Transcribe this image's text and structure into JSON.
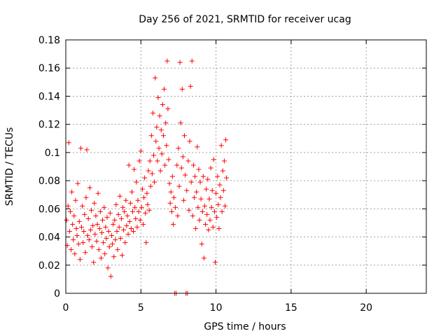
{
  "chart_data": {
    "type": "scatter",
    "title": "Day 256 of 2021, SRMTID for receiver ucag",
    "xlabel": "GPS time / hours",
    "ylabel": "SRMTID / TECUs",
    "xlim": [
      0,
      24
    ],
    "ylim": [
      0,
      0.18
    ],
    "xticks": [
      0,
      5,
      10,
      15,
      20
    ],
    "xtick_labels": [
      "0",
      "5",
      "10",
      "15",
      "20"
    ],
    "yticks": [
      0,
      0.02,
      0.04,
      0.06,
      0.08,
      0.1,
      0.12,
      0.14,
      0.16,
      0.18
    ],
    "ytick_labels": [
      "0",
      "0.02",
      "0.04",
      "0.06",
      "0.08",
      "0.1",
      "0.12",
      "0.14",
      "0.16",
      "0.18"
    ],
    "grid": true,
    "marker": "+",
    "series": [
      {
        "name": "SRMTID",
        "color": "#ff0000",
        "points": [
          [
            0.05,
            0.052
          ],
          [
            0.1,
            0.034
          ],
          [
            0.15,
            0.062
          ],
          [
            0.2,
            0.107
          ],
          [
            0.25,
            0.044
          ],
          [
            0.3,
            0.058
          ],
          [
            0.35,
            0.031
          ],
          [
            0.4,
            0.072
          ],
          [
            0.45,
            0.049
          ],
          [
            0.5,
            0.038
          ],
          [
            0.55,
            0.055
          ],
          [
            0.6,
            0.028
          ],
          [
            0.65,
            0.066
          ],
          [
            0.7,
            0.046
          ],
          [
            0.75,
            0.041
          ],
          [
            0.8,
            0.078
          ],
          [
            0.85,
            0.035
          ],
          [
            0.9,
            0.051
          ],
          [
            0.95,
            0.024
          ],
          [
            1.0,
            0.103
          ],
          [
            1.05,
            0.047
          ],
          [
            1.1,
            0.062
          ],
          [
            1.15,
            0.036
          ],
          [
            1.2,
            0.044
          ],
          [
            1.25,
            0.056
          ],
          [
            1.3,
            0.029
          ],
          [
            1.35,
            0.068
          ],
          [
            1.4,
            0.102
          ],
          [
            1.45,
            0.041
          ],
          [
            1.5,
            0.053
          ],
          [
            1.55,
            0.038
          ],
          [
            1.6,
            0.075
          ],
          [
            1.65,
            0.045
          ],
          [
            1.7,
            0.059
          ],
          [
            1.75,
            0.033
          ],
          [
            1.8,
            0.048
          ],
          [
            1.85,
            0.022
          ],
          [
            1.9,
            0.064
          ],
          [
            1.95,
            0.042
          ],
          [
            2.0,
            0.055
          ],
          [
            2.05,
            0.037
          ],
          [
            2.1,
            0.049
          ],
          [
            2.15,
            0.071
          ],
          [
            2.2,
            0.031
          ],
          [
            2.25,
            0.046
          ],
          [
            2.3,
            0.058
          ],
          [
            2.35,
            0.025
          ],
          [
            2.4,
            0.043
          ],
          [
            2.45,
            0.052
          ],
          [
            2.5,
            0.036
          ],
          [
            2.55,
            0.061
          ],
          [
            2.6,
            0.028
          ],
          [
            2.65,
            0.047
          ],
          [
            2.7,
            0.039
          ],
          [
            2.75,
            0.054
          ],
          [
            2.8,
            0.018
          ],
          [
            2.85,
            0.044
          ],
          [
            2.9,
            0.033
          ],
          [
            2.95,
            0.057
          ],
          [
            3.0,
            0.012
          ],
          [
            3.05,
            0.041
          ],
          [
            3.1,
            0.035
          ],
          [
            3.15,
            0.049
          ],
          [
            3.2,
            0.026
          ],
          [
            3.25,
            0.052
          ],
          [
            3.3,
            0.038
          ],
          [
            3.35,
            0.063
          ],
          [
            3.4,
            0.044
          ],
          [
            3.45,
            0.031
          ],
          [
            3.5,
            0.056
          ],
          [
            3.55,
            0.047
          ],
          [
            3.6,
            0.069
          ],
          [
            3.65,
            0.039
          ],
          [
            3.7,
            0.053
          ],
          [
            3.75,
            0.027
          ],
          [
            3.8,
            0.061
          ],
          [
            3.85,
            0.045
          ],
          [
            3.9,
            0.058
          ],
          [
            3.95,
            0.036
          ],
          [
            4.0,
            0.066
          ],
          [
            4.05,
            0.048
          ],
          [
            4.1,
            0.055
          ],
          [
            4.15,
            0.042
          ],
          [
            4.2,
            0.091
          ],
          [
            4.25,
            0.051
          ],
          [
            4.3,
            0.064
          ],
          [
            4.35,
            0.046
          ],
          [
            4.4,
            0.072
          ],
          [
            4.45,
            0.058
          ],
          [
            4.5,
            0.044
          ],
          [
            4.55,
            0.088
          ],
          [
            4.6,
            0.061
          ],
          [
            4.65,
            0.053
          ],
          [
            4.7,
            0.079
          ],
          [
            4.75,
            0.047
          ],
          [
            4.8,
            0.066
          ],
          [
            4.85,
            0.058
          ],
          [
            4.9,
            0.094
          ],
          [
            4.95,
            0.052
          ],
          [
            5.0,
            0.101
          ],
          [
            5.05,
            0.061
          ],
          [
            5.1,
            0.074
          ],
          [
            5.15,
            0.049
          ],
          [
            5.2,
            0.068
          ],
          [
            5.25,
            0.082
          ],
          [
            5.3,
            0.057
          ],
          [
            5.35,
            0.036
          ],
          [
            5.4,
            0.071
          ],
          [
            5.45,
            0.063
          ],
          [
            5.5,
            0.087
          ],
          [
            5.55,
            0.059
          ],
          [
            5.6,
            0.094
          ],
          [
            5.65,
            0.076
          ],
          [
            5.7,
            0.112
          ],
          [
            5.75,
            0.085
          ],
          [
            5.8,
            0.128
          ],
          [
            5.85,
            0.098
          ],
          [
            5.9,
            0.079
          ],
          [
            5.95,
            0.153
          ],
          [
            6.0,
            0.108
          ],
          [
            6.05,
            0.118
          ],
          [
            6.1,
            0.094
          ],
          [
            6.15,
            0.139
          ],
          [
            6.2,
            0.103
          ],
          [
            6.25,
            0.126
          ],
          [
            6.3,
            0.087
          ],
          [
            6.35,
            0.116
          ],
          [
            6.4,
            0.099
          ],
          [
            6.45,
            0.134
          ],
          [
            6.5,
            0.112
          ],
          [
            6.55,
            0.145
          ],
          [
            6.6,
            0.091
          ],
          [
            6.65,
            0.121
          ],
          [
            6.7,
            0.105
          ],
          [
            6.75,
            0.165
          ],
          [
            6.8,
            0.131
          ],
          [
            6.85,
            0.095
          ],
          [
            6.9,
            0.078
          ],
          [
            6.95,
            0.064
          ],
          [
            7.0,
            0.072
          ],
          [
            7.05,
            0.058
          ],
          [
            7.1,
            0.083
          ],
          [
            7.15,
            0.049
          ],
          [
            7.2,
            0.068
          ],
          [
            7.25,
            0.0
          ],
          [
            7.3,
            0.061
          ],
          [
            7.35,
            0.0
          ],
          [
            7.4,
            0.091
          ],
          [
            7.45,
            0.055
          ],
          [
            7.5,
            0.103
          ],
          [
            7.55,
            0.076
          ],
          [
            7.6,
            0.164
          ],
          [
            7.65,
            0.121
          ],
          [
            7.7,
            0.089
          ],
          [
            7.75,
            0.145
          ],
          [
            7.8,
            0.097
          ],
          [
            7.85,
            0.066
          ],
          [
            7.9,
            0.112
          ],
          [
            7.95,
            0.084
          ],
          [
            8.0,
            0.0
          ],
          [
            8.05,
            0.073
          ],
          [
            8.1,
            0.0
          ],
          [
            8.15,
            0.094
          ],
          [
            8.2,
            0.059
          ],
          [
            8.25,
            0.108
          ],
          [
            8.3,
            0.147
          ],
          [
            8.35,
            0.079
          ],
          [
            8.4,
            0.165
          ],
          [
            8.45,
            0.055
          ],
          [
            8.5,
            0.091
          ],
          [
            8.55,
            0.068
          ],
          [
            8.6,
            0.083
          ],
          [
            8.65,
            0.046
          ],
          [
            8.7,
            0.072
          ],
          [
            8.75,
            0.104
          ],
          [
            8.8,
            0.061
          ],
          [
            8.85,
            0.088
          ],
          [
            8.9,
            0.052
          ],
          [
            8.95,
            0.079
          ],
          [
            9.0,
            0.067
          ],
          [
            9.05,
            0.035
          ],
          [
            9.1,
            0.058
          ],
          [
            9.15,
            0.083
          ],
          [
            9.2,
            0.025
          ],
          [
            9.25,
            0.062
          ],
          [
            9.3,
            0.049
          ],
          [
            9.35,
            0.074
          ],
          [
            9.4,
            0.056
          ],
          [
            9.45,
            0.081
          ],
          [
            9.5,
            0.045
          ],
          [
            9.55,
            0.067
          ],
          [
            9.6,
            0.052
          ],
          [
            9.65,
            0.089
          ],
          [
            9.7,
            0.061
          ],
          [
            9.75,
            0.073
          ],
          [
            9.8,
            0.047
          ],
          [
            9.85,
            0.095
          ],
          [
            9.9,
            0.058
          ],
          [
            9.95,
            0.022
          ],
          [
            10.0,
            0.071
          ],
          [
            10.05,
            0.054
          ],
          [
            10.1,
            0.083
          ],
          [
            10.15,
            0.063
          ],
          [
            10.2,
            0.046
          ],
          [
            10.25,
            0.077
          ],
          [
            10.3,
            0.068
          ],
          [
            10.35,
            0.105
          ],
          [
            10.4,
            0.058
          ],
          [
            10.45,
            0.087
          ],
          [
            10.5,
            0.073
          ],
          [
            10.55,
            0.094
          ],
          [
            10.6,
            0.062
          ],
          [
            10.65,
            0.109
          ],
          [
            10.7,
            0.082
          ]
        ]
      }
    ]
  }
}
